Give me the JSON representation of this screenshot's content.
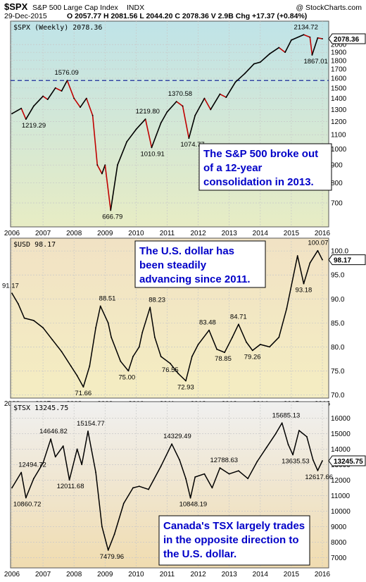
{
  "header": {
    "symbol": "$SPX",
    "name": "S&P 500 Large Cap Index",
    "exchange": "INDX",
    "copyright": "@ StockCharts.com",
    "date": "29-Dec-2015",
    "stats": "O 2057.77  H 2081.56  L 2044.20  C 2078.36  V 2.9B  Chg +17.37 (+0.84%)"
  },
  "x_labels": [
    "2006",
    "2007",
    "2008",
    "2009",
    "2010",
    "2011",
    "2012",
    "2013",
    "2014",
    "2015",
    "2016"
  ],
  "chart_data": [
    {
      "type": "line",
      "panel_label": "$SPX (Weekly) 2078.36",
      "last_label": "2078.36",
      "y_scale": "log",
      "ylim": [
        620,
        2250
      ],
      "y_ticks": [
        "2000",
        "1900",
        "1800",
        "1700",
        "1600",
        "1500",
        "1400",
        "1300",
        "1200",
        "1100",
        "1000",
        "900",
        "800",
        "700"
      ],
      "y_tick_values": [
        2000,
        1900,
        1800,
        1700,
        1600,
        1500,
        1400,
        1300,
        1200,
        1100,
        1000,
        900,
        800,
        700
      ],
      "reference_line": 1576.09,
      "x": [
        2006.0,
        2006.3,
        2006.45,
        2006.7,
        2007.0,
        2007.15,
        2007.4,
        2007.6,
        2007.78,
        2008.0,
        2008.2,
        2008.4,
        2008.6,
        2008.75,
        2008.9,
        2009.0,
        2009.18,
        2009.4,
        2009.7,
        2010.0,
        2010.3,
        2010.5,
        2010.8,
        2011.0,
        2011.3,
        2011.5,
        2011.7,
        2011.9,
        2012.2,
        2012.4,
        2012.7,
        2012.9,
        2013.2,
        2013.5,
        2013.8,
        2014.0,
        2014.3,
        2014.6,
        2014.8,
        2015.0,
        2015.4,
        2015.6,
        2015.67,
        2015.85,
        2016.0
      ],
      "values": [
        1265,
        1310,
        1219.29,
        1330,
        1420,
        1390,
        1500,
        1470,
        1576.09,
        1400,
        1320,
        1400,
        1250,
        900,
        850,
        900,
        666.79,
        900,
        1050,
        1140,
        1219.8,
        1010.91,
        1190,
        1280,
        1370.58,
        1330,
        1074.77,
        1250,
        1400,
        1300,
        1440,
        1410,
        1560,
        1650,
        1760,
        1780,
        1880,
        1960,
        1900,
        2060,
        2134.72,
        2100,
        1867.01,
        2090,
        2078.36
      ],
      "annotations": [
        {
          "text": "1576.09",
          "value": 1576.09
        },
        {
          "text": "1219.29",
          "value": 1219.29
        },
        {
          "text": "1219.80",
          "value": 1219.8
        },
        {
          "text": "1010.91",
          "value": 1010.91
        },
        {
          "text": "1370.58",
          "value": 1370.58
        },
        {
          "text": "1074.77",
          "value": 1074.77
        },
        {
          "text": "666.79",
          "value": 666.79
        },
        {
          "text": "2134.72",
          "value": 2134.72
        },
        {
          "text": "1867.01",
          "value": 1867.01
        }
      ],
      "note": [
        "The S&P 500 broke out",
        "of a 12-year",
        "consolidation in 2013."
      ],
      "colors": {
        "bg_top": "#bfe3e8",
        "bg_bottom": "#e7ecc4",
        "line": "#000000",
        "down": "#c00000",
        "note_text": "#0000c8"
      }
    },
    {
      "type": "line",
      "panel_label": "$USD 98.17",
      "last_label": "98.17",
      "y_scale": "linear",
      "ylim": [
        70.5,
        101.5
      ],
      "y_ticks": [
        "100.0",
        "95.0",
        "90.0",
        "85.0",
        "80.0",
        "75.0",
        "70.0"
      ],
      "y_tick_values": [
        100,
        95,
        90,
        85,
        80,
        75,
        70
      ],
      "x": [
        2006.0,
        2006.2,
        2006.4,
        2006.7,
        2007.0,
        2007.3,
        2007.6,
        2007.9,
        2008.1,
        2008.3,
        2008.5,
        2008.7,
        2008.85,
        2009.1,
        2009.2,
        2009.5,
        2009.75,
        2009.9,
        2010.1,
        2010.2,
        2010.45,
        2010.6,
        2010.8,
        2011.1,
        2011.35,
        2011.6,
        2011.8,
        2012.0,
        2012.35,
        2012.6,
        2012.85,
        2013.1,
        2013.3,
        2013.55,
        2013.75,
        2014.0,
        2014.3,
        2014.6,
        2014.85,
        2015.2,
        2015.4,
        2015.6,
        2015.85,
        2016.0
      ],
      "values": [
        91.17,
        89,
        86,
        85.5,
        84,
        81.5,
        79,
        76,
        74,
        71.66,
        76,
        84,
        88.51,
        85,
        82,
        77,
        75,
        78,
        80,
        83,
        88.23,
        82,
        78,
        76.55,
        74.5,
        72.93,
        78,
        80.5,
        83.48,
        79.5,
        78.85,
        82,
        84.71,
        81,
        79.26,
        80.5,
        80,
        82,
        88,
        99,
        93.18,
        97.5,
        100.07,
        98.17
      ],
      "annotations": [
        {
          "text": "91.17",
          "value": 91.17
        },
        {
          "text": "88.51",
          "value": 88.51
        },
        {
          "text": "88.23",
          "value": 88.23
        },
        {
          "text": "71.66",
          "value": 71.66
        },
        {
          "text": "75.00",
          "value": 75.0
        },
        {
          "text": "76.55",
          "value": 76.55
        },
        {
          "text": "72.93",
          "value": 72.93
        },
        {
          "text": "83.48",
          "value": 83.48
        },
        {
          "text": "78.85",
          "value": 78.85
        },
        {
          "text": "84.71",
          "value": 84.71
        },
        {
          "text": "79.26",
          "value": 79.26
        },
        {
          "text": "93.18",
          "value": 93.18
        },
        {
          "text": "100.07",
          "value": 100.07
        }
      ],
      "note": [
        "The U.S. dollar has",
        "been steadily",
        "advancing since 2011."
      ],
      "colors": {
        "bg_top": "#f1e2c4",
        "bg_bottom": "#f4edc2",
        "line": "#000000",
        "note_text": "#0000c8"
      }
    },
    {
      "type": "line",
      "panel_label": "$TSX 13245.75",
      "last_label": "13245.75",
      "y_scale": "linear",
      "ylim": [
        6700,
        16700
      ],
      "y_ticks": [
        "16000",
        "15000",
        "14000",
        "13000",
        "12000",
        "11000",
        "10000",
        "9000",
        "8000",
        "7000"
      ],
      "y_tick_values": [
        16000,
        15000,
        14000,
        13000,
        12000,
        11000,
        10000,
        9000,
        8000,
        7000
      ],
      "x": [
        2006.0,
        2006.3,
        2006.45,
        2006.7,
        2007.0,
        2007.25,
        2007.4,
        2007.65,
        2007.85,
        2008.1,
        2008.25,
        2008.45,
        2008.7,
        2008.9,
        2009.1,
        2009.3,
        2009.6,
        2009.9,
        2010.1,
        2010.4,
        2010.8,
        2011.15,
        2011.4,
        2011.6,
        2011.75,
        2011.9,
        2012.2,
        2012.45,
        2012.7,
        2013.0,
        2013.3,
        2013.6,
        2013.9,
        2014.2,
        2014.5,
        2014.7,
        2014.9,
        2015.05,
        2015.25,
        2015.5,
        2015.7,
        2015.85,
        2016.0
      ],
      "values": [
        11500,
        12494.72,
        10860.72,
        12100,
        13100,
        14646.82,
        13500,
        14200,
        12011.68,
        14000,
        13000,
        15154.77,
        12500,
        9000,
        7479.96,
        8500,
        10500,
        11500,
        11600,
        11400,
        12900,
        14329.49,
        13300,
        12100,
        10848.19,
        12200,
        12400,
        11500,
        12788.63,
        12400,
        12600,
        12100,
        13200,
        14100,
        15000,
        15685.13,
        14300,
        13635.53,
        15200,
        14800,
        13300,
        12617.66,
        13245.75
      ],
      "annotations": [
        {
          "text": "12494.72",
          "value": 12494.72
        },
        {
          "text": "14646.82",
          "value": 14646.82
        },
        {
          "text": "15154.77",
          "value": 15154.77
        },
        {
          "text": "12011.68",
          "value": 12011.68
        },
        {
          "text": "10860.72",
          "value": 10860.72
        },
        {
          "text": "7479.96",
          "value": 7479.96
        },
        {
          "text": "14329.49",
          "value": 14329.49
        },
        {
          "text": "12788.63",
          "value": 12788.63
        },
        {
          "text": "10848.19",
          "value": 10848.19
        },
        {
          "text": "15685.13",
          "value": 15685.13
        },
        {
          "text": "13635.53",
          "value": 13635.53
        },
        {
          "text": "12617.66",
          "value": 12617.66
        }
      ],
      "note": [
        "Canada's TSX largely trades",
        "in the opposite direction to",
        "the U.S. dollar."
      ],
      "colors": {
        "bg_top": "#f0f0f0",
        "bg_bottom": "#f0dcb0",
        "line": "#000000",
        "note_text": "#0000c8"
      }
    }
  ]
}
